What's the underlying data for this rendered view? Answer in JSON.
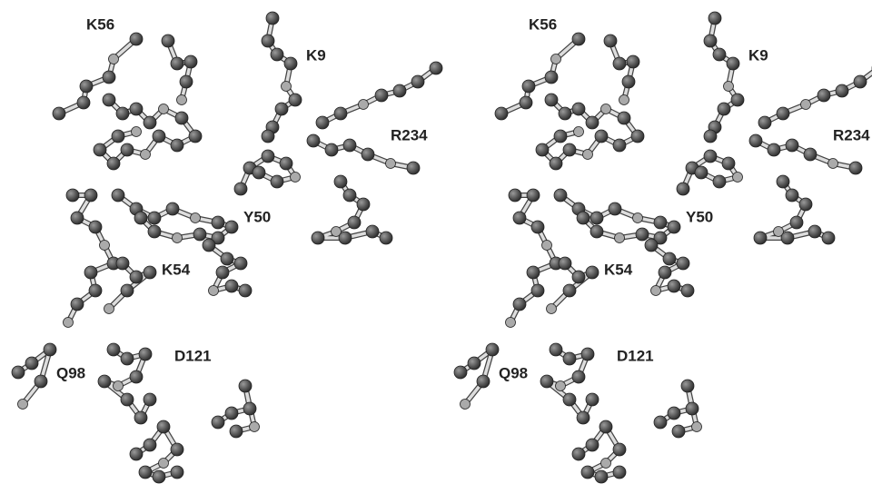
{
  "panels": [
    {
      "labels": [
        "K56",
        "K9",
        "R234",
        "Y50",
        "K54",
        "D121",
        "Q98"
      ]
    },
    {
      "labels": [
        "K56",
        "K9",
        "R234",
        "Y50",
        "K54",
        "D121",
        "Q98"
      ]
    }
  ]
}
